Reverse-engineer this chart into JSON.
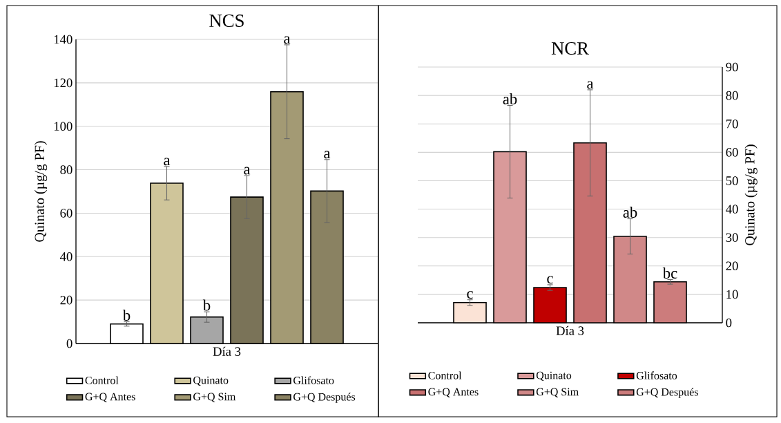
{
  "chart_data": [
    {
      "type": "bar",
      "title": "NCS",
      "ylabel": "Quinato (µg/g PF)",
      "categories": [
        "Día 3"
      ],
      "ylim": [
        0,
        140
      ],
      "yticks": [
        0,
        20,
        40,
        60,
        80,
        100,
        120,
        140
      ],
      "grid": "y",
      "legend": "bottom",
      "series": [
        {
          "name": "Control",
          "color": "#ffffff",
          "values": [
            9.0
          ],
          "errors": [
            1.0
          ]
        },
        {
          "name": "Quinato",
          "color": "#cfc59a",
          "values": [
            73.8
          ],
          "errors": [
            7.7
          ]
        },
        {
          "name": "Glifosato",
          "color": "#a6a6a6",
          "values": [
            12.2
          ],
          "errors": [
            2.4
          ]
        },
        {
          "name": "G+Q Antes",
          "color": "#7a7358",
          "values": [
            67.4
          ],
          "errors": [
            9.9
          ]
        },
        {
          "name": "G+Q Sim",
          "color": "#a39a74",
          "values": [
            115.9
          ],
          "errors": [
            21.6
          ]
        },
        {
          "name": "G+Q Después",
          "color": "#8a8262",
          "values": [
            70.2
          ],
          "errors": [
            14.5
          ]
        }
      ],
      "annotations": [
        "b",
        "a",
        "b",
        "a",
        "a",
        "a"
      ]
    },
    {
      "type": "bar",
      "title": "NCR",
      "ylabel": "Quinato (µg/g PF)",
      "categories": [
        "Día 3"
      ],
      "ylim": [
        0,
        90
      ],
      "yticks": [
        0,
        10,
        20,
        30,
        40,
        50,
        60,
        70,
        80,
        90
      ],
      "grid": "y",
      "legend": "bottom",
      "series": [
        {
          "name": "Control",
          "color": "#fbe3d6",
          "values": [
            7.1
          ],
          "errors": [
            1.0
          ]
        },
        {
          "name": "Quinato",
          "color": "#d99a9a",
          "values": [
            60.2
          ],
          "errors": [
            16.3
          ]
        },
        {
          "name": "Glifosato",
          "color": "#c00000",
          "values": [
            12.4
          ],
          "errors": [
            1.0
          ]
        },
        {
          "name": "G+Q Antes",
          "color": "#c87070",
          "values": [
            63.3
          ],
          "errors": [
            18.7
          ]
        },
        {
          "name": "G+Q Sim",
          "color": "#d08888",
          "values": [
            30.4
          ],
          "errors": [
            6.2
          ]
        },
        {
          "name": "G+Q Después",
          "color": "#cc7c7c",
          "values": [
            14.4
          ],
          "errors": [
            0.8
          ]
        }
      ],
      "annotations": [
        "c",
        "ab",
        "c",
        "a",
        "ab",
        "bc"
      ]
    }
  ]
}
